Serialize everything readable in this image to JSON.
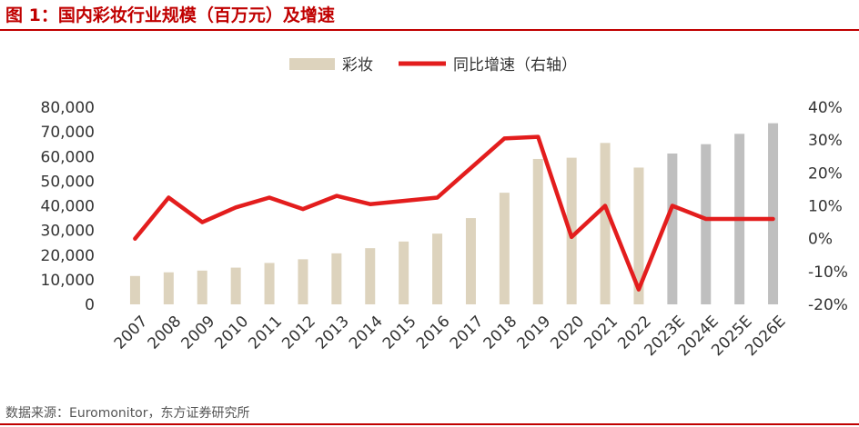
{
  "title": "图 1：国内彩妆行业规模（百万元）及增速",
  "source": "数据来源：Euromonitor，东方证券研究所",
  "colors": {
    "accent": "#c00000",
    "bar_actual": "#ddd3bd",
    "bar_forecast": "#bfbfbf",
    "line": "#e31d1d"
  },
  "chart_data": {
    "type": "bar",
    "categories": [
      "2007",
      "2008",
      "2009",
      "2010",
      "2011",
      "2012",
      "2013",
      "2014",
      "2015",
      "2016",
      "2017",
      "2018",
      "2019",
      "2020",
      "2021",
      "2022",
      "2023E",
      "2024E",
      "2025E",
      "2026E"
    ],
    "series": [
      {
        "name": "彩妆",
        "type": "bar",
        "axis": "left",
        "values": [
          11500,
          13000,
          13700,
          14900,
          16800,
          18300,
          20700,
          22800,
          25500,
          28700,
          35000,
          45300,
          59000,
          59500,
          65500,
          55500,
          61200,
          65000,
          69200,
          73500
        ]
      },
      {
        "name": "同比增速（右轴）",
        "type": "line",
        "axis": "right",
        "values": [
          0.0,
          12.5,
          5.0,
          9.5,
          12.5,
          9.0,
          13.0,
          10.5,
          11.5,
          12.5,
          21.5,
          30.5,
          31.0,
          0.5,
          10.0,
          -15.5,
          10.0,
          6.0,
          6.0,
          6.0
        ]
      }
    ],
    "forecast_categories": [
      "2023E",
      "2024E",
      "2025E",
      "2026E"
    ],
    "left_axis": {
      "min": 0,
      "max": 80000,
      "ticks": [
        "0",
        "10,000",
        "20,000",
        "30,000",
        "40,000",
        "50,000",
        "60,000",
        "70,000",
        "80,000"
      ]
    },
    "right_axis": {
      "min": -20,
      "max": 40,
      "ticks": [
        "-20%",
        "-10%",
        "0%",
        "10%",
        "20%",
        "30%",
        "40%"
      ]
    },
    "legend_position": "top-center",
    "grid": false
  }
}
